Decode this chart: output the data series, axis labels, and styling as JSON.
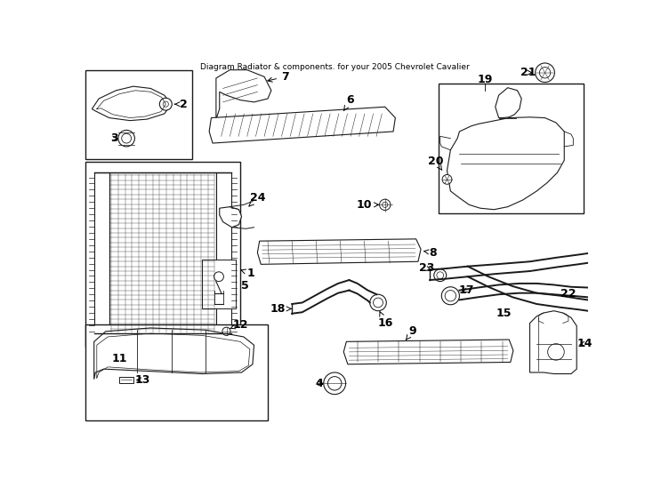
{
  "title": "Diagram Radiator & components. for your 2005 Chevrolet Cavalier",
  "bg": "#ffffff",
  "lc": "#1a1a1a",
  "fig_w": 7.34,
  "fig_h": 5.4,
  "dpi": 100,
  "label_fs": 9,
  "small_fs": 7.5
}
